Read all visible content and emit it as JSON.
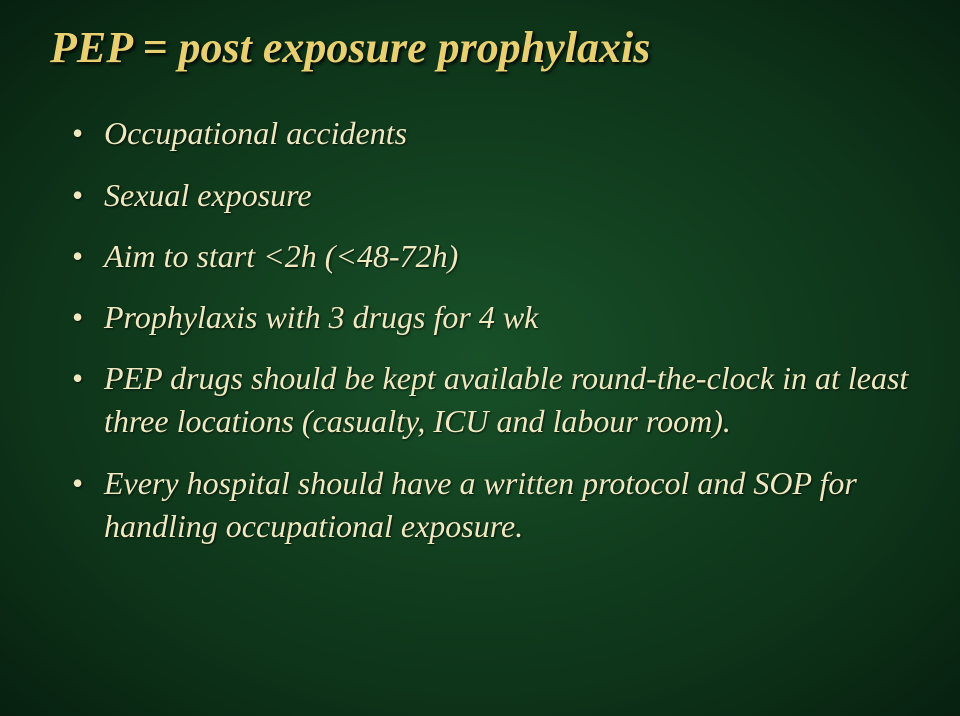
{
  "slide": {
    "title": "PEP = post exposure prophylaxis",
    "title_color": "#e8d070",
    "title_fontsize": 44,
    "body_color": "#f0e8c0",
    "body_fontsize": 32,
    "background_gradient": {
      "center": "#185028",
      "mid": "#0d3218",
      "edge": "#072010"
    },
    "bullets": [
      "Occupational accidents",
      "Sexual exposure",
      "Aim to start <2h (<48-72h)",
      "Prophylaxis with 3 drugs for 4 wk",
      "PEP drugs should be kept available round-the-clock in at least three locations (casualty, ICU and labour room).",
      "Every hospital should have a written protocol and SOP for handling occupational exposure."
    ]
  }
}
